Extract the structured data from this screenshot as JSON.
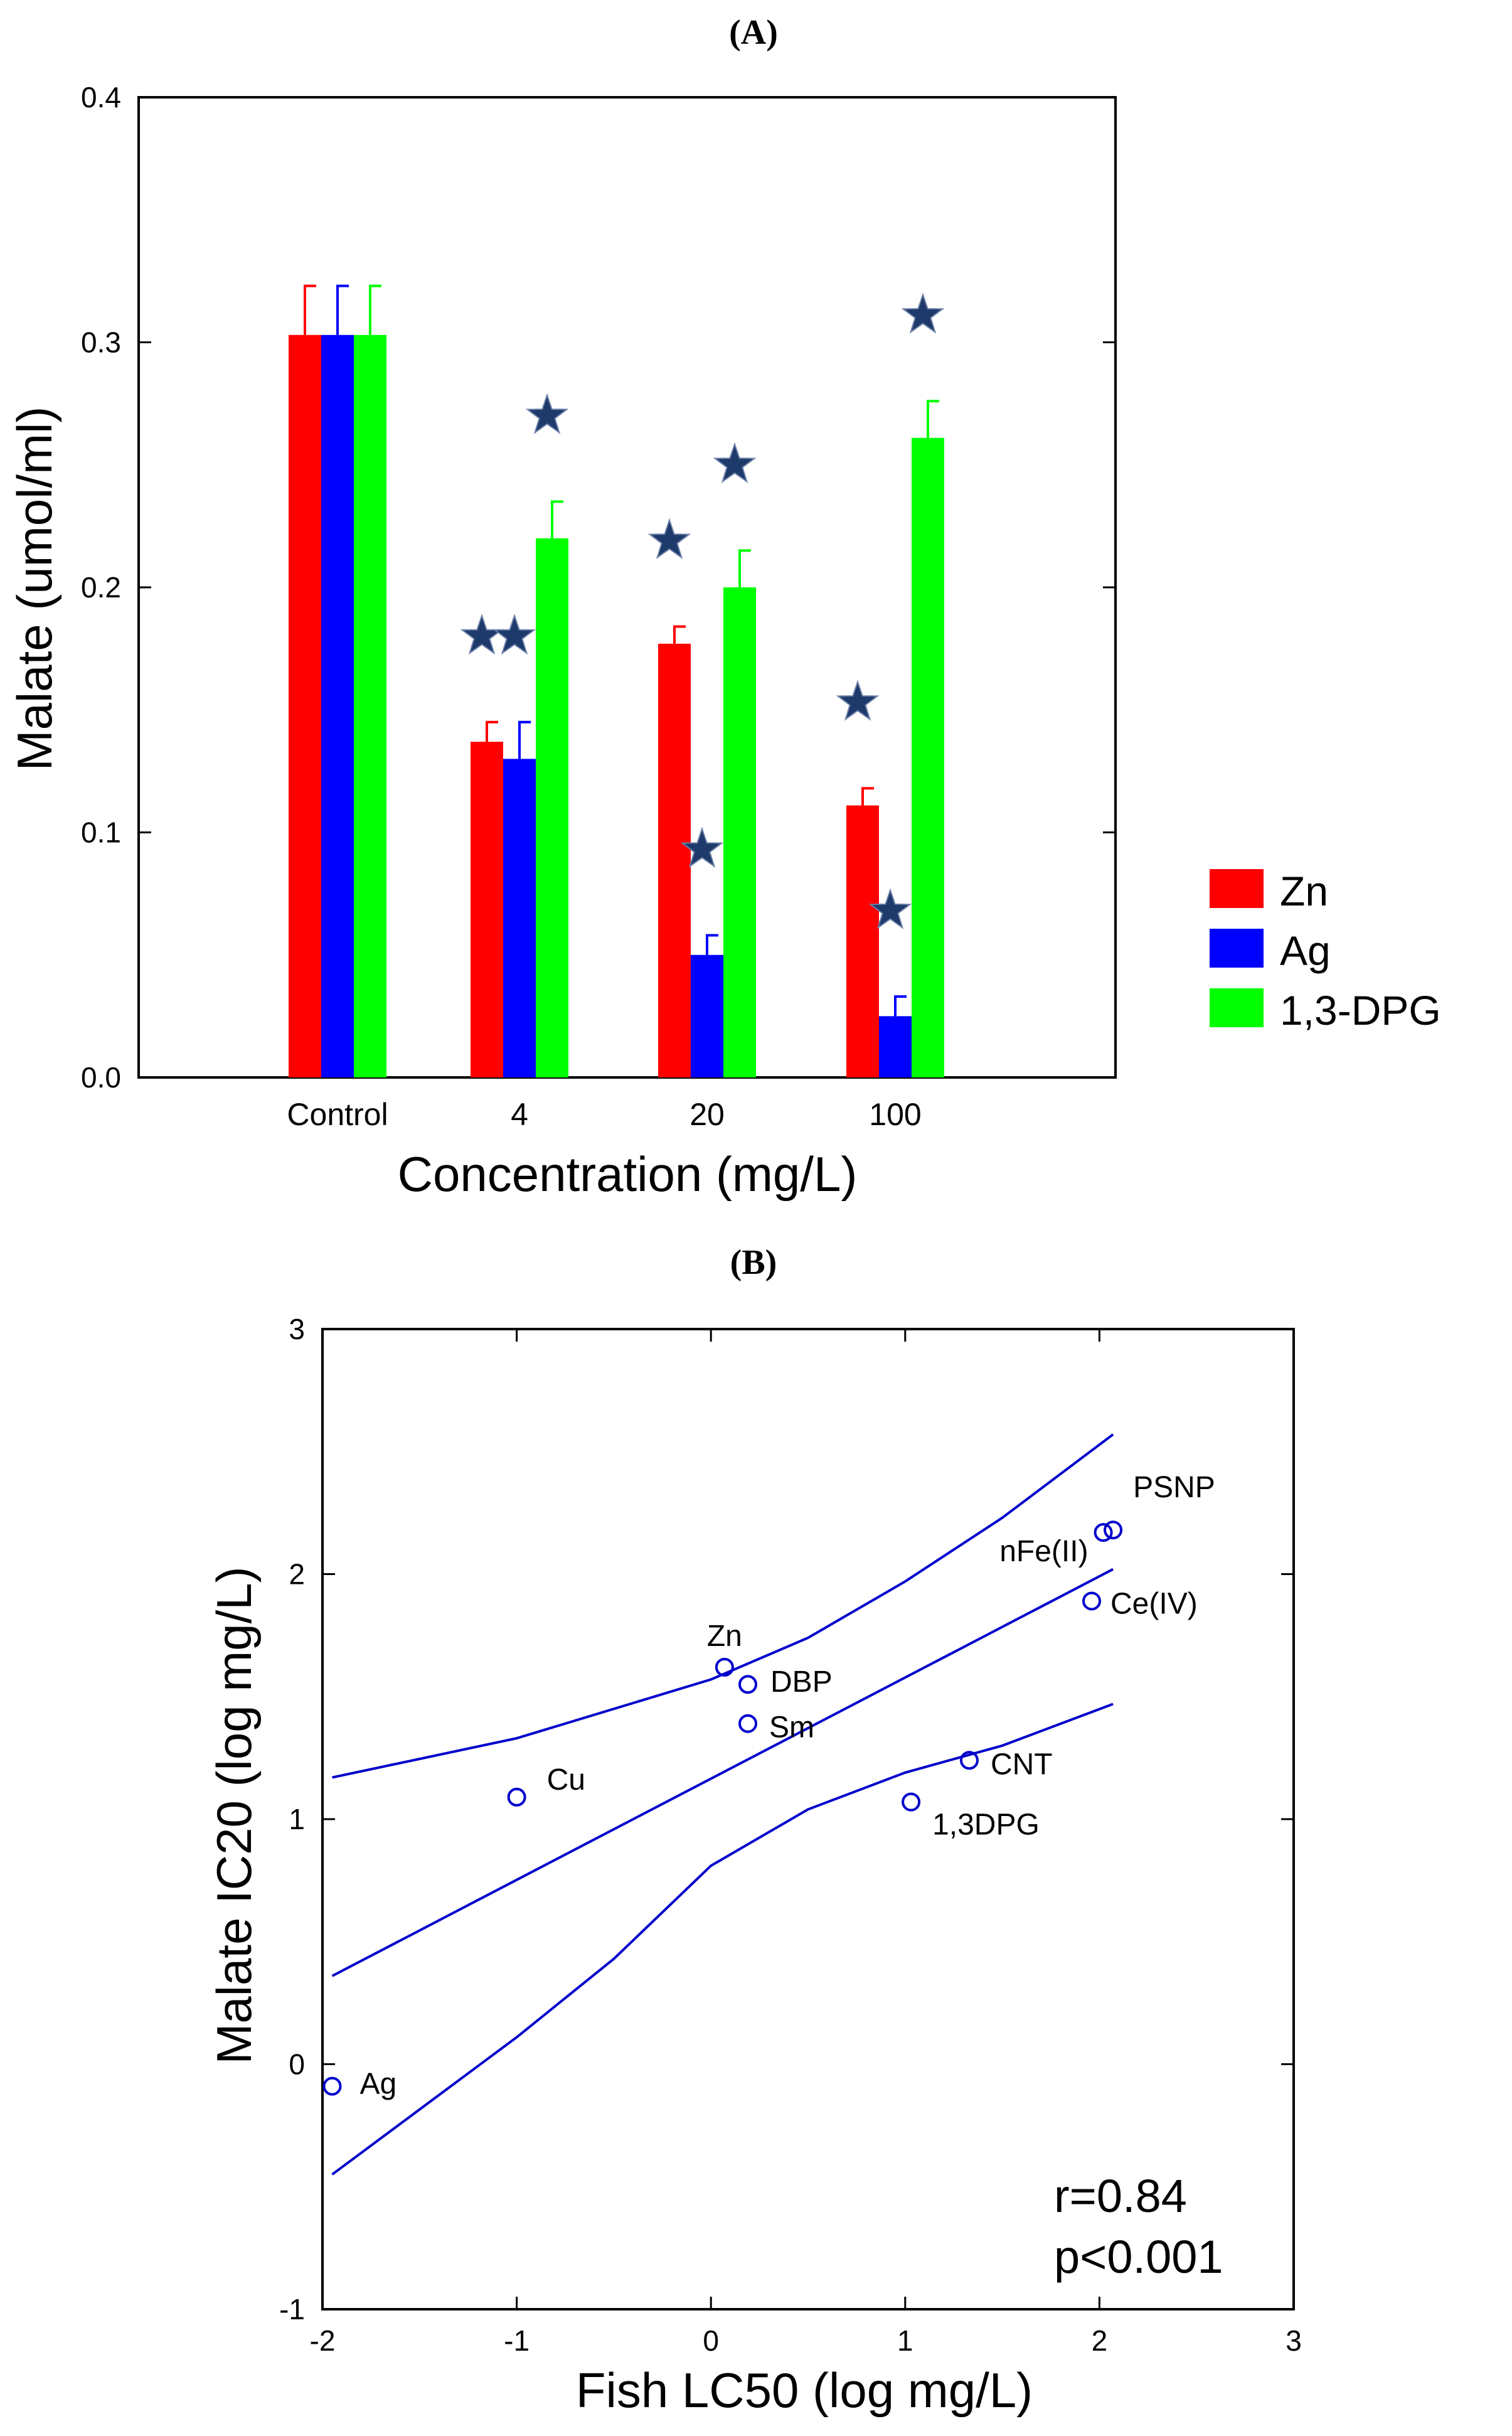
{
  "figure": {
    "panel_a_label": "(A)",
    "panel_b_label": "(B)"
  },
  "chart_data": [
    {
      "type": "bar",
      "panel": "(A)",
      "title": "",
      "xlabel": "Concentration (mg/L)",
      "ylabel": "Malate (umol/ml)",
      "categories": [
        "Control",
        "4",
        "20",
        "100"
      ],
      "ylim": [
        0.0,
        0.4
      ],
      "yticks": [
        0.0,
        0.1,
        0.2,
        0.3,
        0.4
      ],
      "ytick_labels": [
        "0.0",
        "0.1",
        "0.2",
        "0.3",
        "0.4"
      ],
      "grid": false,
      "legend_position": "right",
      "series": [
        {
          "name": "Zn",
          "color": "#ff0000",
          "values": [
            0.303,
            0.137,
            0.177,
            0.111
          ],
          "errors": [
            0.02,
            0.008,
            0.007,
            0.007
          ],
          "significant": [
            false,
            true,
            true,
            true
          ]
        },
        {
          "name": "Ag",
          "color": "#0000ff",
          "values": [
            0.303,
            0.13,
            0.05,
            0.025
          ],
          "errors": [
            0.02,
            0.015,
            0.008,
            0.008
          ],
          "significant": [
            false,
            true,
            true,
            true
          ]
        },
        {
          "name": "1,3-DPG",
          "color": "#00ff00",
          "values": [
            0.303,
            0.22,
            0.2,
            0.261
          ],
          "errors": [
            0.02,
            0.015,
            0.015,
            0.015
          ],
          "significant": [
            false,
            true,
            true,
            true
          ]
        }
      ],
      "significance_marker": "star",
      "significance_color": "#1e3a6a"
    },
    {
      "type": "scatter",
      "panel": "(B)",
      "title": "",
      "xlabel": "Fish LC50 (log mg/L)",
      "ylabel": "Malate IC20 (log mg/L)",
      "xlim": [
        -2,
        3
      ],
      "ylim": [
        -1,
        3
      ],
      "xticks": [
        -2,
        -1,
        0,
        1,
        2,
        3
      ],
      "yticks": [
        -1,
        0,
        1,
        2,
        3
      ],
      "grid": false,
      "color": "#0000cc",
      "points": [
        {
          "label": "Ag",
          "x": -1.95,
          "y": -0.09
        },
        {
          "label": "Cu",
          "x": -1.0,
          "y": 1.09
        },
        {
          "label": "Zn",
          "x": 0.07,
          "y": 1.62
        },
        {
          "label": "DBP",
          "x": 0.19,
          "y": 1.55
        },
        {
          "label": "Sm",
          "x": 0.19,
          "y": 1.39
        },
        {
          "label": "1,3DPG",
          "x": 1.03,
          "y": 1.07
        },
        {
          "label": "CNT",
          "x": 1.33,
          "y": 1.24
        },
        {
          "label": "Ce(IV)",
          "x": 1.96,
          "y": 1.89
        },
        {
          "label": "nFe(II)",
          "x": 2.02,
          "y": 2.17
        },
        {
          "label": "PSNP",
          "x": 2.07,
          "y": 2.18
        }
      ],
      "regression_line": {
        "x": [
          -1.95,
          2.07
        ],
        "y": [
          0.36,
          2.02
        ]
      },
      "confidence_band_upper": {
        "x": [
          -1.95,
          -1.0,
          0.0,
          0.5,
          1.0,
          1.5,
          2.07
        ],
        "y": [
          1.17,
          1.33,
          1.57,
          1.74,
          1.97,
          2.23,
          2.57
        ]
      },
      "confidence_band_lower": {
        "x": [
          -1.95,
          -1.0,
          -0.5,
          0.0,
          0.5,
          1.0,
          1.5,
          2.07
        ],
        "y": [
          -0.45,
          0.11,
          0.43,
          0.81,
          1.04,
          1.19,
          1.3,
          1.47
        ]
      },
      "annotations": [
        "r=0.84",
        "p<0.001"
      ]
    }
  ]
}
